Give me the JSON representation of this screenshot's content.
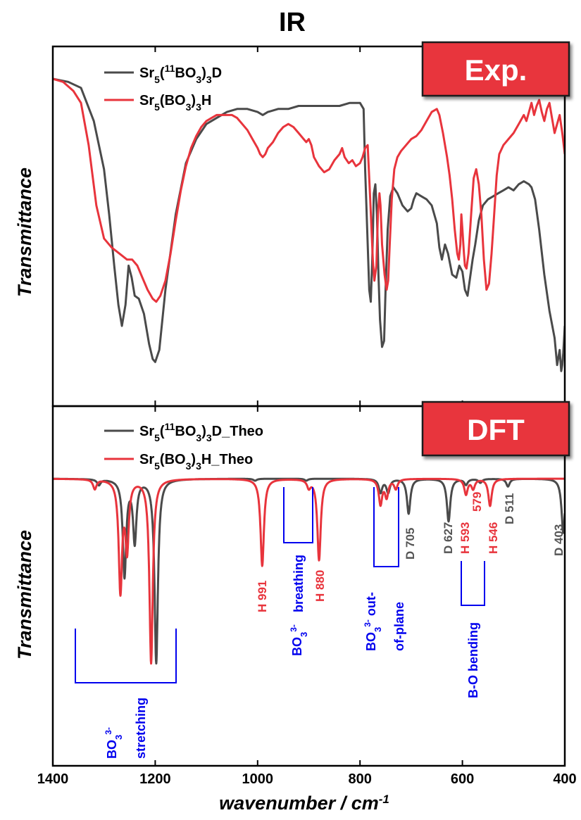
{
  "title": "IR",
  "xlabel": "wavenumber / cm",
  "xlabel_sup": "-1",
  "ylabel": "Transmittance",
  "colors": {
    "black_series": "#4a4a4a",
    "red_series": "#e8343c",
    "badge": "#e8343c",
    "band": "#0000ee"
  },
  "xticks": [
    "1400",
    "1200",
    "1000",
    "800",
    "600",
    "400"
  ],
  "panels": {
    "top": {
      "badge": "Exp.",
      "legend": [
        {
          "pre": "Sr",
          "sub1": "5",
          "mid1": "(",
          "sup": "11",
          "mid2": "BO",
          "sub2": "3",
          "mid3": ")",
          "sub3": "3",
          "post": "D",
          "color": "#4a4a4a"
        },
        {
          "pre": "Sr",
          "sub1": "5",
          "mid1": "(",
          "sup": "",
          "mid2": "BO",
          "sub2": "3",
          "mid3": ")",
          "sub3": "3",
          "post": "H",
          "color": "#e8343c"
        }
      ]
    },
    "bottom": {
      "badge": "DFT",
      "legend": [
        {
          "pre": "Sr",
          "sub1": "5",
          "mid1": "(",
          "sup": "11",
          "mid2": "BO",
          "sub2": "3",
          "mid3": ")",
          "sub3": "3",
          "post": "D_Theo",
          "color": "#4a4a4a"
        },
        {
          "pre": "Sr",
          "sub1": "5",
          "mid1": "(",
          "sup": "",
          "mid2": "BO",
          "sub2": "3",
          "mid3": ")",
          "sub3": "3",
          "post": "H_Theo",
          "color": "#e8343c"
        }
      ]
    }
  },
  "annotations": [
    {
      "text": "H 991",
      "color": "#e8343c"
    },
    {
      "text": "H 880",
      "color": "#e8343c"
    },
    {
      "text": "D 705",
      "color": "#555555"
    },
    {
      "text": "D 627",
      "color": "#555555"
    },
    {
      "text": "H 593",
      "color": "#e8343c"
    },
    {
      "text": "579",
      "color": "#e8343c"
    },
    {
      "text": "H 546",
      "color": "#e8343c"
    },
    {
      "text": "D 511",
      "color": "#555555"
    },
    {
      "text": "D 403",
      "color": "#555555"
    }
  ],
  "bands": {
    "stretching": {
      "l1": "BO",
      "l1_sub": "3",
      "l1_sup": "3-",
      "l2": "stretching"
    },
    "breathing": {
      "l1": "BO",
      "l1_sub": "3",
      "l1_sup": "3-",
      "l2": "breathing"
    },
    "outofplane": {
      "l1": "BO",
      "l1_sub": "3",
      "l1_sup": "3-",
      "l2": "out-",
      "l3": "of-plane"
    },
    "bending": {
      "l1": "B-O bending"
    }
  },
  "chart_data": [
    {
      "type": "line",
      "title": "Exp.",
      "xlabel": "wavenumber / cm-1",
      "ylabel": "Transmittance",
      "xlim": [
        1400,
        400
      ],
      "x_reversed": true,
      "y_tick_labels": false,
      "series": [
        {
          "name": "Sr5(11BO3)3D",
          "color": "#4a4a4a",
          "x": [
            1400,
            1370,
            1345,
            1320,
            1300,
            1290,
            1280,
            1272,
            1265,
            1258,
            1252,
            1246,
            1240,
            1232,
            1222,
            1212,
            1205,
            1200,
            1192,
            1180,
            1160,
            1140,
            1120,
            1100,
            1080,
            1060,
            1040,
            1020,
            1000,
            990,
            980,
            960,
            940,
            920,
            900,
            880,
            860,
            840,
            820,
            810,
            800,
            793,
            790,
            786,
            782,
            779,
            776,
            773,
            770,
            767,
            764,
            761,
            757,
            753,
            750,
            746,
            741,
            735,
            727,
            717,
            707,
            700,
            695,
            690,
            680,
            670,
            660,
            650,
            645,
            640,
            634,
            628,
            620,
            612,
            606,
            600,
            595,
            590,
            585,
            580,
            575,
            568,
            560,
            550,
            540,
            530,
            520,
            510,
            500,
            490,
            480,
            470,
            465,
            458,
            450,
            440,
            430,
            420,
            415,
            410,
            407,
            405,
            403,
            401,
            400
          ],
          "y": [
            1.0,
            0.99,
            0.97,
            0.86,
            0.7,
            0.55,
            0.38,
            0.25,
            0.18,
            0.25,
            0.38,
            0.34,
            0.28,
            0.27,
            0.22,
            0.12,
            0.07,
            0.06,
            0.1,
            0.3,
            0.55,
            0.72,
            0.8,
            0.85,
            0.87,
            0.89,
            0.9,
            0.9,
            0.89,
            0.88,
            0.89,
            0.9,
            0.9,
            0.91,
            0.91,
            0.91,
            0.91,
            0.91,
            0.92,
            0.92,
            0.92,
            0.9,
            0.7,
            0.5,
            0.3,
            0.26,
            0.4,
            0.62,
            0.65,
            0.55,
            0.35,
            0.2,
            0.11,
            0.13,
            0.3,
            0.5,
            0.61,
            0.64,
            0.62,
            0.58,
            0.56,
            0.57,
            0.6,
            0.62,
            0.61,
            0.6,
            0.58,
            0.52,
            0.44,
            0.4,
            0.45,
            0.42,
            0.35,
            0.34,
            0.38,
            0.36,
            0.3,
            0.28,
            0.34,
            0.4,
            0.45,
            0.53,
            0.58,
            0.6,
            0.61,
            0.62,
            0.63,
            0.64,
            0.63,
            0.65,
            0.66,
            0.65,
            0.64,
            0.6,
            0.5,
            0.35,
            0.23,
            0.14,
            0.05,
            0.1,
            0.03,
            0.05,
            0.09,
            0.15,
            0.18
          ]
        },
        {
          "name": "Sr5(BO3)3H",
          "color": "#e8343c",
          "x": [
            1400,
            1380,
            1360,
            1345,
            1330,
            1315,
            1300,
            1285,
            1270,
            1255,
            1245,
            1235,
            1225,
            1215,
            1205,
            1198,
            1190,
            1180,
            1170,
            1160,
            1150,
            1140,
            1130,
            1120,
            1110,
            1100,
            1090,
            1080,
            1070,
            1060,
            1050,
            1040,
            1030,
            1020,
            1010,
            1000,
            995,
            990,
            985,
            980,
            970,
            960,
            950,
            940,
            930,
            920,
            910,
            905,
            900,
            895,
            890,
            880,
            870,
            860,
            850,
            840,
            835,
            830,
            822,
            815,
            808,
            800,
            795,
            790,
            785,
            780,
            775,
            772,
            768,
            765,
            762,
            760,
            757,
            752,
            748,
            745,
            742,
            738,
            733,
            727,
            720,
            710,
            700,
            690,
            680,
            670,
            660,
            650,
            645,
            638,
            630,
            625,
            620,
            615,
            610,
            607,
            604,
            602,
            600,
            597,
            595,
            592,
            588,
            583,
            578,
            573,
            568,
            563,
            558,
            553,
            548,
            543,
            538,
            533,
            528,
            520,
            510,
            500,
            490,
            480,
            475,
            470,
            465,
            460,
            455,
            450,
            445,
            440,
            435,
            430,
            425,
            420,
            415,
            410,
            405,
            400
          ],
          "y": [
            1.0,
            0.99,
            0.96,
            0.92,
            0.78,
            0.58,
            0.47,
            0.44,
            0.42,
            0.4,
            0.4,
            0.38,
            0.34,
            0.3,
            0.27,
            0.26,
            0.28,
            0.33,
            0.42,
            0.53,
            0.63,
            0.71,
            0.77,
            0.81,
            0.84,
            0.86,
            0.87,
            0.88,
            0.88,
            0.88,
            0.88,
            0.87,
            0.85,
            0.83,
            0.8,
            0.77,
            0.75,
            0.74,
            0.75,
            0.77,
            0.79,
            0.82,
            0.84,
            0.85,
            0.84,
            0.82,
            0.8,
            0.79,
            0.8,
            0.78,
            0.74,
            0.71,
            0.69,
            0.7,
            0.73,
            0.75,
            0.77,
            0.74,
            0.72,
            0.73,
            0.71,
            0.72,
            0.74,
            0.77,
            0.78,
            0.6,
            0.4,
            0.33,
            0.38,
            0.55,
            0.62,
            0.58,
            0.45,
            0.35,
            0.3,
            0.33,
            0.45,
            0.6,
            0.7,
            0.74,
            0.76,
            0.78,
            0.8,
            0.81,
            0.83,
            0.86,
            0.89,
            0.9,
            0.88,
            0.82,
            0.74,
            0.68,
            0.6,
            0.5,
            0.42,
            0.4,
            0.45,
            0.55,
            0.5,
            0.42,
            0.38,
            0.37,
            0.42,
            0.55,
            0.67,
            0.7,
            0.65,
            0.55,
            0.4,
            0.3,
            0.32,
            0.42,
            0.55,
            0.68,
            0.75,
            0.78,
            0.8,
            0.82,
            0.85,
            0.88,
            0.86,
            0.89,
            0.92,
            0.88,
            0.91,
            0.93,
            0.89,
            0.86,
            0.9,
            0.92,
            0.87,
            0.82,
            0.85,
            0.88,
            0.82,
            0.75
          ]
        }
      ]
    },
    {
      "type": "line",
      "title": "DFT",
      "xlabel": "wavenumber / cm-1",
      "ylabel": "Transmittance",
      "xlim": [
        1400,
        400
      ],
      "x_reversed": true,
      "y_tick_labels": false,
      "series": [
        {
          "name": "Sr5(11BO3)3D_Theo",
          "color": "#4a4a4a",
          "peaks": [
            [
              1310,
              0.03
            ],
            [
              1260,
              0.5
            ],
            [
              1240,
              0.32
            ],
            [
              1198,
              0.95
            ],
            [
              1005,
              0.01
            ],
            [
              905,
              0.01
            ],
            [
              760,
              0.07
            ],
            [
              745,
              0.07
            ],
            [
              705,
              0.18
            ],
            [
              627,
              0.22
            ],
            [
              593,
              0.03
            ],
            [
              565,
              0.02
            ],
            [
              511,
              0.04
            ],
            [
              403,
              0.28
            ]
          ]
        },
        {
          "name": "Sr5(BO3)3H_Theo",
          "color": "#e8343c",
          "peaks": [
            [
              1318,
              0.05
            ],
            [
              1268,
              0.57
            ],
            [
              1255,
              0.35
            ],
            [
              1208,
              0.95
            ],
            [
              991,
              0.45
            ],
            [
              900,
              0.04
            ],
            [
              880,
              0.42
            ],
            [
              760,
              0.13
            ],
            [
              748,
              0.09
            ],
            [
              730,
              0.05
            ],
            [
              593,
              0.08
            ],
            [
              579,
              0.05
            ],
            [
              546,
              0.14
            ]
          ]
        }
      ]
    }
  ]
}
